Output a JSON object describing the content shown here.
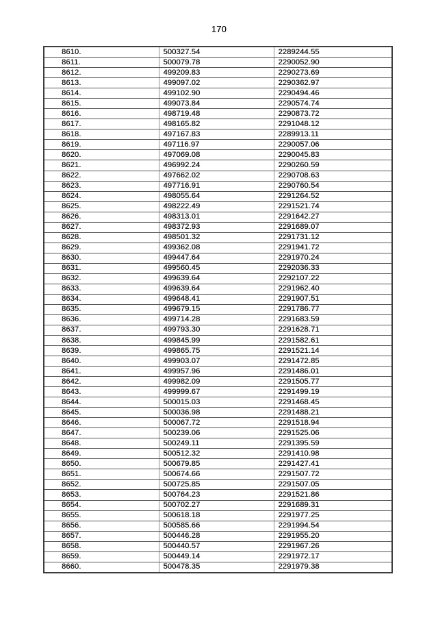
{
  "page": {
    "number": "170"
  },
  "table": {
    "rows": [
      [
        "8610.",
        "500327.54",
        "2289244.55"
      ],
      [
        "8611.",
        "500079.78",
        "2290052.90"
      ],
      [
        "8612.",
        "499209.83",
        "2290273.69"
      ],
      [
        "8613.",
        "499097.02",
        "2290362.97"
      ],
      [
        "8614.",
        "499102.90",
        "2290494.46"
      ],
      [
        "8615.",
        "499073.84",
        "2290574.74"
      ],
      [
        "8616.",
        "498719.48",
        "2290873.72"
      ],
      [
        "8617.",
        "498165.82",
        "2291048.12"
      ],
      [
        "8618.",
        "497167.83",
        "2289913.11"
      ],
      [
        "8619.",
        "497116.97",
        "2290057.06"
      ],
      [
        "8620.",
        "497069.08",
        "2290045.83"
      ],
      [
        "8621.",
        "496992.24",
        "2290260.59"
      ],
      [
        "8622.",
        "497662.02",
        "2290708.63"
      ],
      [
        "8623.",
        "497716.91",
        "2290760.54"
      ],
      [
        "8624.",
        "498055.64",
        "2291264.52"
      ],
      [
        "8625.",
        "498222.49",
        "2291521.74"
      ],
      [
        "8626.",
        "498313.01",
        "2291642.27"
      ],
      [
        "8627.",
        "498372.93",
        "2291689.07"
      ],
      [
        "8628.",
        "498501.32",
        "2291731.12"
      ],
      [
        "8629.",
        "499362.08",
        "2291941.72"
      ],
      [
        "8630.",
        "499447.64",
        "2291970.24"
      ],
      [
        "8631.",
        "499560.45",
        "2292036.33"
      ],
      [
        "8632.",
        "499639.64",
        "2292107.22"
      ],
      [
        "8633.",
        "499639.64",
        "2291962.40"
      ],
      [
        "8634.",
        "499648.41",
        "2291907.51"
      ],
      [
        "8635.",
        "499679.15",
        "2291786.77"
      ],
      [
        "8636.",
        "499714.28",
        "2291683.59"
      ],
      [
        "8637.",
        "499793.30",
        "2291628.71"
      ],
      [
        "8638.",
        "499845.99",
        "2291582.61"
      ],
      [
        "8639.",
        "499865.75",
        "2291521.14"
      ],
      [
        "8640.",
        "499903.07",
        "2291472.85"
      ],
      [
        "8641.",
        "499957.96",
        "2291486.01"
      ],
      [
        "8642.",
        "499982.09",
        "2291505.77"
      ],
      [
        "8643.",
        "499999.67",
        "2291499.19"
      ],
      [
        "8644.",
        "500015.03",
        "2291468.45"
      ],
      [
        "8645.",
        "500036.98",
        "2291488.21"
      ],
      [
        "8646.",
        "500067.72",
        "2291518.94"
      ],
      [
        "8647.",
        "500239.06",
        "2291525.06"
      ],
      [
        "8648.",
        "500249.11",
        "2291395.59"
      ],
      [
        "8649.",
        "500512.32",
        "2291410.98"
      ],
      [
        "8650.",
        "500679.85",
        "2291427.41"
      ],
      [
        "8651.",
        "500674.66",
        "2291507.72"
      ],
      [
        "8652.",
        "500725.85",
        "2291507.05"
      ],
      [
        "8653.",
        "500764.23",
        "2291521.86"
      ],
      [
        "8654.",
        "500702.27",
        "2291689.31"
      ],
      [
        "8655.",
        "500618.18",
        "2291977.25"
      ],
      [
        "8656.",
        "500585.66",
        "2291994.54"
      ],
      [
        "8657.",
        "500446.28",
        "2291955.20"
      ],
      [
        "8658.",
        "500440.57",
        "2291967.26"
      ],
      [
        "8659.",
        "500449.14",
        "2291972.17"
      ],
      [
        "8660.",
        "500478.35",
        "2291979.38"
      ]
    ]
  }
}
